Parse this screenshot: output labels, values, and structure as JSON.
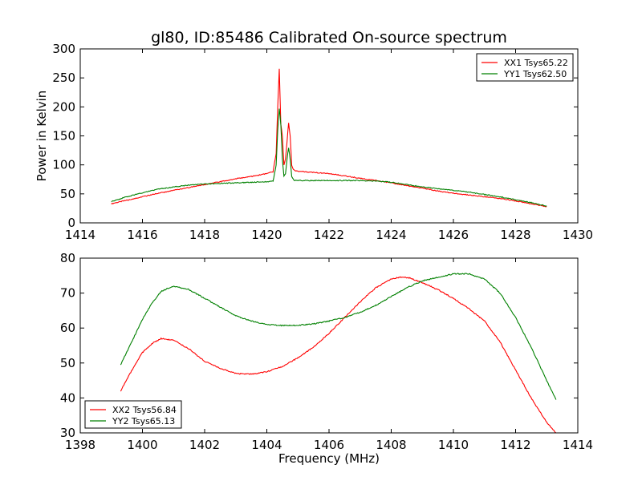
{
  "chart_data": [
    {
      "type": "line",
      "title": "gl80, ID:85486 Calibrated On-source spectrum",
      "xlabel": "",
      "ylabel": "Power in Kelvin",
      "xlim": [
        1414,
        1430
      ],
      "ylim": [
        0,
        300
      ],
      "xticks": [
        1414,
        1416,
        1418,
        1420,
        1422,
        1424,
        1426,
        1428,
        1430
      ],
      "yticks": [
        0,
        50,
        100,
        150,
        200,
        250,
        300
      ],
      "grid": false,
      "legend_position": "top-right",
      "series": [
        {
          "name": "XX1 Tsys65.22",
          "color": "#ff0000",
          "x": [
            1415.0,
            1415.5,
            1416.0,
            1416.5,
            1417.0,
            1417.5,
            1418.0,
            1418.5,
            1419.0,
            1419.5,
            1420.0,
            1420.2,
            1420.3,
            1420.35,
            1420.4,
            1420.45,
            1420.5,
            1420.55,
            1420.6,
            1420.65,
            1420.7,
            1420.75,
            1420.8,
            1420.85,
            1420.9,
            1421.0,
            1421.5,
            1422.0,
            1422.5,
            1423.0,
            1423.5,
            1424.0,
            1424.5,
            1425.0,
            1425.5,
            1426.0,
            1426.5,
            1427.0,
            1427.5,
            1428.0,
            1428.5,
            1429.0
          ],
          "y": [
            33,
            39,
            45,
            51,
            56,
            61,
            66,
            71,
            76,
            80,
            85,
            88,
            120,
            200,
            265,
            170,
            150,
            100,
            110,
            140,
            173,
            150,
            100,
            92,
            90,
            89,
            87,
            85,
            81,
            77,
            73,
            69,
            64,
            60,
            55,
            51,
            48,
            45,
            42,
            38,
            33,
            28
          ]
        },
        {
          "name": "YY1 Tsys62.50",
          "color": "#008000",
          "x": [
            1415.0,
            1415.5,
            1416.0,
            1416.5,
            1417.0,
            1417.5,
            1418.0,
            1418.5,
            1419.0,
            1419.5,
            1420.0,
            1420.2,
            1420.3,
            1420.35,
            1420.4,
            1420.45,
            1420.5,
            1420.55,
            1420.6,
            1420.65,
            1420.7,
            1420.75,
            1420.8,
            1420.85,
            1420.9,
            1421.0,
            1421.5,
            1422.0,
            1422.5,
            1423.0,
            1423.5,
            1424.0,
            1424.5,
            1425.0,
            1425.5,
            1426.0,
            1426.5,
            1427.0,
            1427.5,
            1428.0,
            1428.5,
            1429.0
          ],
          "y": [
            37,
            45,
            52,
            58,
            62,
            65,
            67,
            68,
            69,
            70,
            71,
            72,
            100,
            160,
            197,
            170,
            110,
            80,
            85,
            110,
            130,
            110,
            80,
            75,
            73,
            73,
            73,
            73,
            73,
            73,
            72,
            70,
            66,
            62,
            59,
            56,
            53,
            49,
            45,
            40,
            35,
            29
          ]
        }
      ]
    },
    {
      "type": "line",
      "title": "",
      "xlabel": "Frequency (MHz)",
      "ylabel": "",
      "xlim": [
        1398,
        1414
      ],
      "ylim": [
        30,
        80
      ],
      "xticks": [
        1398,
        1400,
        1402,
        1404,
        1406,
        1408,
        1410,
        1412,
        1414
      ],
      "yticks": [
        30,
        40,
        50,
        60,
        70,
        80
      ],
      "grid": false,
      "legend_position": "bottom-left",
      "series": [
        {
          "name": "XX2 Tsys56.84",
          "color": "#ff0000",
          "x": [
            1399.3,
            1399.6,
            1400.0,
            1400.3,
            1400.6,
            1401.0,
            1401.5,
            1402.0,
            1402.5,
            1403.0,
            1403.5,
            1404.0,
            1404.5,
            1405.0,
            1405.5,
            1406.0,
            1406.5,
            1407.0,
            1407.5,
            1408.0,
            1408.3,
            1408.6,
            1409.0,
            1409.5,
            1410.0,
            1410.5,
            1411.0,
            1411.5,
            1412.0,
            1412.5,
            1413.0,
            1413.3
          ],
          "y": [
            42,
            47,
            53,
            55.5,
            57,
            56.5,
            54,
            50.5,
            48.5,
            47,
            46.8,
            47.5,
            49,
            51.5,
            54.5,
            58.5,
            63,
            67.5,
            71.5,
            74,
            74.6,
            74.3,
            73,
            71,
            68.5,
            65.5,
            62,
            56,
            48,
            40,
            33,
            30
          ]
        },
        {
          "name": "YY2 Tsys65.13",
          "color": "#008000",
          "x": [
            1399.3,
            1399.6,
            1400.0,
            1400.3,
            1400.6,
            1401.0,
            1401.5,
            1402.0,
            1402.5,
            1403.0,
            1403.5,
            1404.0,
            1404.5,
            1405.0,
            1405.5,
            1406.0,
            1406.5,
            1407.0,
            1407.5,
            1408.0,
            1408.5,
            1409.0,
            1409.5,
            1410.0,
            1410.5,
            1411.0,
            1411.5,
            1412.0,
            1412.5,
            1413.0,
            1413.3
          ],
          "y": [
            49.5,
            55,
            62.5,
            67,
            70.5,
            72,
            71,
            68.5,
            66,
            63.5,
            62,
            61,
            60.7,
            60.8,
            61.2,
            62,
            63,
            64.5,
            66.5,
            69,
            71.5,
            73.5,
            74.5,
            75.5,
            75.5,
            74,
            70,
            63,
            54.5,
            45,
            39.5
          ]
        }
      ]
    }
  ]
}
